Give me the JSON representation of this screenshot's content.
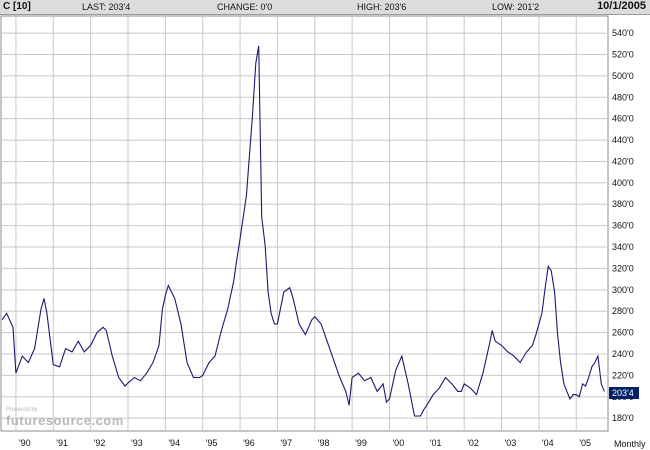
{
  "header": {
    "symbol": "C [10]",
    "last": "LAST: 203'4",
    "change": "CHANGE: 0'0",
    "high": "HIGH: 203'6",
    "low": "LOW: 201'2",
    "date": "10/1/2005"
  },
  "watermark": {
    "small": "Powered by",
    "brand": "futuresource.com"
  },
  "chart_data": {
    "type": "line",
    "period_label": "Monthly",
    "last_price_label": "203'4",
    "last_price_value": 203.5,
    "x_range": [
      1989.6,
      2005.85
    ],
    "y_range": [
      168,
      556
    ],
    "grid": true,
    "bar_color": "#1a1a6e",
    "grid_color": "#c8c8c8",
    "highlight_color": "#001f66",
    "x_ticks": [
      {
        "label": "'90",
        "value": 1990.0
      },
      {
        "label": "'91",
        "value": 1991.0
      },
      {
        "label": "'92",
        "value": 1992.0
      },
      {
        "label": "'93",
        "value": 1993.0
      },
      {
        "label": "'94",
        "value": 1994.0
      },
      {
        "label": "'95",
        "value": 1995.0
      },
      {
        "label": "'96",
        "value": 1996.0
      },
      {
        "label": "'97",
        "value": 1997.0
      },
      {
        "label": "'98",
        "value": 1998.0
      },
      {
        "label": "'99",
        "value": 1999.0
      },
      {
        "label": "'00",
        "value": 2000.0
      },
      {
        "label": "'01",
        "value": 2001.0
      },
      {
        "label": "'02",
        "value": 2002.0
      },
      {
        "label": "'03",
        "value": 2003.0
      },
      {
        "label": "'04",
        "value": 2004.0
      },
      {
        "label": "'05",
        "value": 2005.0
      }
    ],
    "y_ticks": [
      {
        "label": "540'0",
        "value": 540
      },
      {
        "label": "520'0",
        "value": 520
      },
      {
        "label": "500'0",
        "value": 500
      },
      {
        "label": "480'0",
        "value": 480
      },
      {
        "label": "460'0",
        "value": 460
      },
      {
        "label": "440'0",
        "value": 440
      },
      {
        "label": "420'0",
        "value": 420
      },
      {
        "label": "400'0",
        "value": 400
      },
      {
        "label": "380'0",
        "value": 380
      },
      {
        "label": "360'0",
        "value": 360
      },
      {
        "label": "340'0",
        "value": 340
      },
      {
        "label": "320'0",
        "value": 320
      },
      {
        "label": "300'0",
        "value": 300
      },
      {
        "label": "280'0",
        "value": 280
      },
      {
        "label": "260'0",
        "value": 260
      },
      {
        "label": "240'0",
        "value": 240
      },
      {
        "label": "220'0",
        "value": 220
      },
      {
        "label": "200'0",
        "value": 200
      },
      {
        "label": "180'0",
        "value": 180
      }
    ],
    "series": [
      {
        "type": "close_line",
        "points": [
          [
            1989.63,
            272
          ],
          [
            1989.75,
            278
          ],
          [
            1989.92,
            265
          ],
          [
            1990.0,
            222
          ],
          [
            1990.17,
            238
          ],
          [
            1990.33,
            232
          ],
          [
            1990.5,
            245
          ],
          [
            1990.67,
            282
          ],
          [
            1990.75,
            292
          ],
          [
            1990.83,
            278
          ],
          [
            1991.0,
            230
          ],
          [
            1991.17,
            228
          ],
          [
            1991.33,
            245
          ],
          [
            1991.5,
            242
          ],
          [
            1991.67,
            252
          ],
          [
            1991.83,
            242
          ],
          [
            1992.0,
            248
          ],
          [
            1992.17,
            260
          ],
          [
            1992.33,
            265
          ],
          [
            1992.42,
            262
          ],
          [
            1992.58,
            238
          ],
          [
            1992.75,
            218
          ],
          [
            1992.92,
            210
          ],
          [
            1993.0,
            213
          ],
          [
            1993.17,
            218
          ],
          [
            1993.33,
            215
          ],
          [
            1993.5,
            222
          ],
          [
            1993.67,
            232
          ],
          [
            1993.83,
            248
          ],
          [
            1993.92,
            282
          ],
          [
            1994.0,
            295
          ],
          [
            1994.08,
            304
          ],
          [
            1994.25,
            292
          ],
          [
            1994.42,
            268
          ],
          [
            1994.58,
            232
          ],
          [
            1994.75,
            218
          ],
          [
            1994.92,
            218
          ],
          [
            1995.0,
            220
          ],
          [
            1995.17,
            232
          ],
          [
            1995.33,
            238
          ],
          [
            1995.5,
            262
          ],
          [
            1995.67,
            282
          ],
          [
            1995.83,
            308
          ],
          [
            1995.92,
            330
          ],
          [
            1996.0,
            348
          ],
          [
            1996.17,
            388
          ],
          [
            1996.33,
            462
          ],
          [
            1996.42,
            512
          ],
          [
            1996.5,
            528
          ],
          [
            1996.58,
            368
          ],
          [
            1996.67,
            342
          ],
          [
            1996.75,
            298
          ],
          [
            1996.83,
            278
          ],
          [
            1996.92,
            268
          ],
          [
            1997.0,
            268
          ],
          [
            1997.17,
            298
          ],
          [
            1997.33,
            302
          ],
          [
            1997.42,
            292
          ],
          [
            1997.58,
            268
          ],
          [
            1997.75,
            258
          ],
          [
            1997.92,
            272
          ],
          [
            1998.0,
            275
          ],
          [
            1998.17,
            268
          ],
          [
            1998.33,
            252
          ],
          [
            1998.5,
            235
          ],
          [
            1998.67,
            218
          ],
          [
            1998.83,
            205
          ],
          [
            1998.92,
            192
          ],
          [
            1999.0,
            218
          ],
          [
            1999.17,
            222
          ],
          [
            1999.33,
            215
          ],
          [
            1999.5,
            218
          ],
          [
            1999.67,
            205
          ],
          [
            1999.83,
            212
          ],
          [
            1999.92,
            195
          ],
          [
            2000.0,
            198
          ],
          [
            2000.17,
            225
          ],
          [
            2000.33,
            238
          ],
          [
            2000.5,
            212
          ],
          [
            2000.67,
            182
          ],
          [
            2000.83,
            182
          ],
          [
            2000.92,
            188
          ],
          [
            2001.0,
            192
          ],
          [
            2001.17,
            202
          ],
          [
            2001.33,
            208
          ],
          [
            2001.5,
            218
          ],
          [
            2001.67,
            212
          ],
          [
            2001.83,
            205
          ],
          [
            2001.92,
            205
          ],
          [
            2002.0,
            212
          ],
          [
            2002.17,
            208
          ],
          [
            2002.33,
            202
          ],
          [
            2002.5,
            222
          ],
          [
            2002.67,
            248
          ],
          [
            2002.75,
            262
          ],
          [
            2002.83,
            252
          ],
          [
            2003.0,
            248
          ],
          [
            2003.17,
            242
          ],
          [
            2003.33,
            238
          ],
          [
            2003.5,
            232
          ],
          [
            2003.67,
            242
          ],
          [
            2003.83,
            248
          ],
          [
            2003.92,
            258
          ],
          [
            2004.0,
            268
          ],
          [
            2004.08,
            278
          ],
          [
            2004.17,
            302
          ],
          [
            2004.25,
            322
          ],
          [
            2004.33,
            318
          ],
          [
            2004.42,
            298
          ],
          [
            2004.5,
            258
          ],
          [
            2004.58,
            232
          ],
          [
            2004.67,
            212
          ],
          [
            2004.75,
            205
          ],
          [
            2004.83,
            198
          ],
          [
            2004.92,
            202
          ],
          [
            2005.0,
            202
          ],
          [
            2005.08,
            200
          ],
          [
            2005.17,
            212
          ],
          [
            2005.25,
            210
          ],
          [
            2005.33,
            218
          ],
          [
            2005.42,
            228
          ],
          [
            2005.5,
            232
          ],
          [
            2005.58,
            238
          ],
          [
            2005.67,
            212
          ],
          [
            2005.75,
            205
          ]
        ]
      }
    ]
  }
}
